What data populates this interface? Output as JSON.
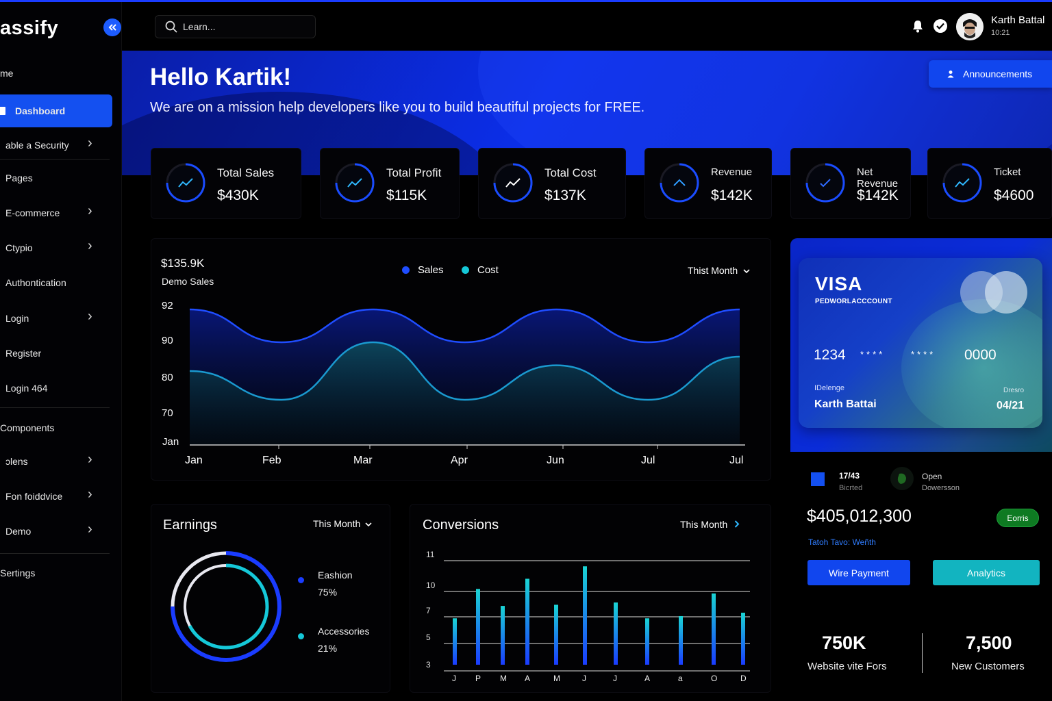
{
  "app": {
    "logo": "assify",
    "collapse_icon": "double-chevron-left-icon"
  },
  "search": {
    "placeholder": "Learn..."
  },
  "user": {
    "name": "Karth Battal",
    "time": "10:21"
  },
  "sidebar": {
    "section_home": "me",
    "items": [
      {
        "label": "Dashboard",
        "active": true
      },
      {
        "label": "able a Security",
        "chevron": true
      },
      {
        "label": "Pages"
      },
      {
        "label": "E-commerce",
        "chevron": true
      },
      {
        "label": "Ctypio",
        "chevron": true
      },
      {
        "label": "Authontication"
      },
      {
        "label": "Login",
        "chevron": true
      },
      {
        "label": "Register"
      },
      {
        "label": "Login 464"
      },
      {
        "label": "Components"
      },
      {
        "label": "ɔlens",
        "chevron": true
      },
      {
        "label": "Fon foiddvice",
        "chevron": true
      },
      {
        "label": "Demo",
        "chevron": true
      },
      {
        "label": "Sertings"
      }
    ]
  },
  "hero": {
    "title": "Hello Kartik!",
    "subtitle": "We are on a mission help developers like you to build beautiful projects for FREE.",
    "announce_label": "Announcements"
  },
  "stats": [
    {
      "title": "Total Sales",
      "value": "$430K",
      "icon": "trend-up-icon"
    },
    {
      "title": "Total Profit",
      "value": "$115K",
      "icon": "trend-up-icon"
    },
    {
      "title": "Total Cost",
      "value": "$137K",
      "icon": "trend-up-icon"
    },
    {
      "title": "Revenue",
      "value": "$142K",
      "icon": "chevron-up-icon"
    },
    {
      "title": "Net Revenue",
      "value": "$142K",
      "icon": "check-icon"
    },
    {
      "title": "Ticket",
      "value": "$4600",
      "icon": "trend-up-icon"
    }
  ],
  "main_chart": {
    "value": "$135.9K",
    "subtitle": "Demo Sales",
    "period": "Thist Month",
    "chart_data": {
      "type": "area",
      "title": "",
      "legend": [
        "Sales",
        "Cost"
      ],
      "legend_placement": "top-center",
      "y_ticks": [
        "92",
        "90",
        "80",
        "70",
        "Jan"
      ],
      "x_ticks": [
        "Jan",
        "Feb",
        "Mar",
        "Apr",
        "Jun",
        "Jul",
        "Jul"
      ],
      "series": [
        {
          "name": "Sales",
          "values": [
            92,
            90,
            92,
            90,
            92,
            90,
            92
          ],
          "color": "#1f4dff"
        },
        {
          "name": "Cost",
          "values": [
            80,
            74,
            90,
            74,
            82,
            74,
            85
          ],
          "color": "#1a9ad0"
        }
      ]
    }
  },
  "card": {
    "brand": "VISA",
    "account": "PEDWORLACCCOUNT",
    "num_first": "1234",
    "stars1": "****",
    "stars2": "****",
    "num_last": "0000",
    "holder_label": "IDelenge",
    "holder": "Karth Battai",
    "exp_label": "Dreѕro",
    "exp": "04/21"
  },
  "balance": {
    "a_title": "17/43",
    "a_sub": "Bicrted",
    "b_title": "Open",
    "b_sub": "Dowersson",
    "amount": "$405,012,300",
    "badge": "Eorris",
    "link": "Tatoh Tavo: Weñth",
    "btn_wire": "Wire Payment",
    "btn_analytics": "Analytics"
  },
  "kpis": [
    {
      "value": "750K",
      "label": "Website vite Fors"
    },
    {
      "value": "7,500",
      "label": "New Customers"
    }
  ],
  "earnings": {
    "title": "Earnings",
    "period": "This Month",
    "chart_data": {
      "type": "pie",
      "categories": [
        "Eashion",
        "Accessories"
      ],
      "values": [
        75,
        21
      ],
      "labels": [
        "75%",
        "21%"
      ],
      "colors": [
        "#1a3cff",
        "#15c8d8"
      ]
    }
  },
  "conversions": {
    "title": "Conversions",
    "period": "This Month",
    "chart_data": {
      "type": "bar",
      "y_ticks": [
        "11",
        "10",
        "7",
        "5",
        "3"
      ],
      "x_ticks": [
        "J",
        "P",
        "M",
        "A",
        "M",
        "J",
        "J",
        "A",
        "a",
        "O",
        "D"
      ],
      "values": [
        6.3,
        8.9,
        7.4,
        9.8,
        7.5,
        10.9,
        7.7,
        6.3,
        6.5,
        8.5,
        6.8
      ],
      "ylim": [
        2.2,
        11.4
      ]
    }
  }
}
